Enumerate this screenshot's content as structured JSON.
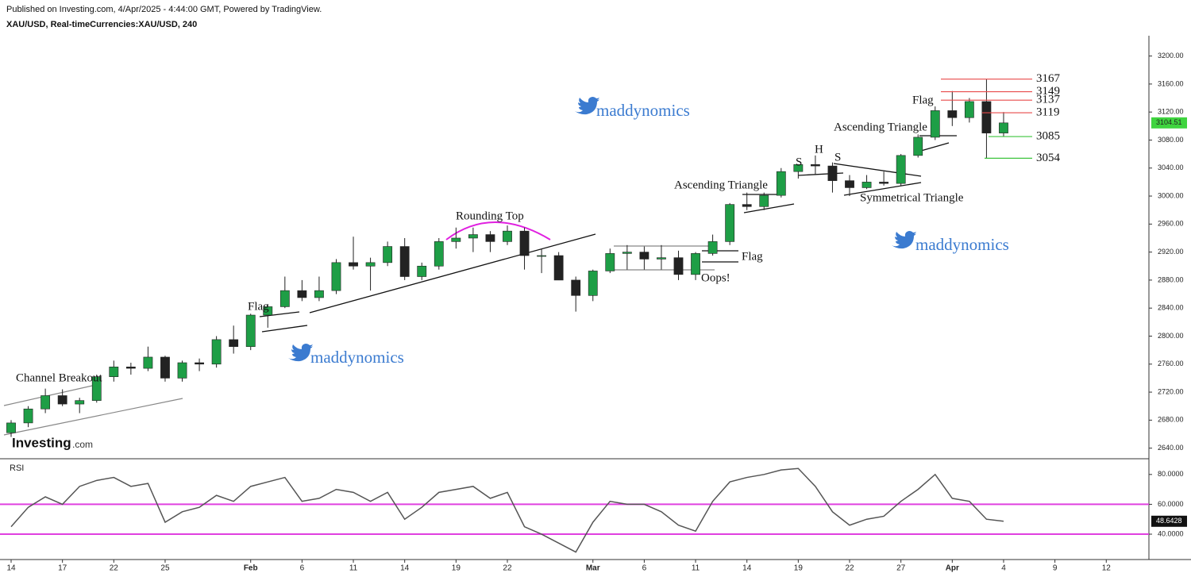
{
  "header": {
    "published": "Published on Investing.com, 4/Apr/2025 - 4:44:00 GMT, Powered by TradingView.",
    "symbol": "XAU/USD, Real-timeCurrencies:XAU/USD, 240",
    "watermark": "maddynomics",
    "logo": [
      "Investing",
      ".com"
    ]
  },
  "chart_data": [
    {
      "type": "candlestick",
      "open": [
        2662,
        2676,
        2696,
        2715,
        2703,
        2708,
        2742,
        2756,
        2754,
        2770,
        2740,
        2762,
        2760,
        2795,
        2785,
        2830,
        2842,
        2865,
        2855,
        2865,
        2905,
        2900,
        2905,
        2928,
        2885,
        2900,
        2935,
        2940,
        2945,
        2935,
        2950,
        2915,
        2915,
        2880,
        2858,
        2893,
        2918,
        2920,
        2910,
        2912,
        2888,
        2918,
        2935,
        2988,
        2985,
        3001,
        3035,
        3045,
        3043,
        3022,
        3012,
        3020,
        3018,
        3058,
        3084,
        3122,
        3112,
        3135,
        3090
      ],
      "high": [
        2680,
        2700,
        2725,
        2724,
        2712,
        2745,
        2765,
        2762,
        2785,
        2772,
        2765,
        2768,
        2800,
        2815,
        2832,
        2845,
        2885,
        2880,
        2885,
        2910,
        2942,
        2912,
        2935,
        2940,
        2905,
        2940,
        2955,
        2955,
        2950,
        2958,
        2955,
        2925,
        2920,
        2885,
        2895,
        2925,
        2930,
        2928,
        2930,
        2922,
        2920,
        2945,
        2990,
        3005,
        3005,
        3040,
        3045,
        3058,
        3048,
        3030,
        3030,
        3035,
        3060,
        3088,
        3128,
        3150,
        3140,
        3167,
        3120
      ],
      "low": [
        2656,
        2670,
        2690,
        2700,
        2690,
        2705,
        2735,
        2745,
        2750,
        2735,
        2735,
        2750,
        2755,
        2775,
        2780,
        2812,
        2840,
        2850,
        2850,
        2860,
        2895,
        2865,
        2900,
        2880,
        2880,
        2895,
        2925,
        2920,
        2920,
        2930,
        2895,
        2890,
        2880,
        2835,
        2850,
        2890,
        2895,
        2895,
        2895,
        2880,
        2880,
        2915,
        2930,
        2980,
        2980,
        2998,
        3025,
        3030,
        3005,
        3000,
        3010,
        3015,
        3015,
        3055,
        3080,
        3100,
        3105,
        3054,
        3085
      ],
      "close": [
        2676,
        2696,
        2715,
        2703,
        2708,
        2742,
        2756,
        2754,
        2770,
        2740,
        2762,
        2760,
        2795,
        2785,
        2830,
        2842,
        2865,
        2855,
        2865,
        2905,
        2900,
        2905,
        2928,
        2885,
        2900,
        2935,
        2940,
        2945,
        2935,
        2950,
        2915,
        2915,
        2880,
        2858,
        2893,
        2918,
        2920,
        2910,
        2912,
        2888,
        2918,
        2935,
        2988,
        2985,
        3001,
        3035,
        3045,
        3043,
        3022,
        3012,
        3020,
        3018,
        3058,
        3084,
        3122,
        3112,
        3135,
        3090,
        3104.51
      ],
      "up_color": "#1e9e46",
      "down_color": "#222222",
      "xlim": [
        -0.65,
        66.4
      ],
      "xticks": [
        {
          "value": 0,
          "label": "14"
        },
        {
          "value": 3,
          "label": "17"
        },
        {
          "value": 6,
          "label": "22"
        },
        {
          "value": 9,
          "label": "25"
        },
        {
          "value": 14,
          "label": "Feb"
        },
        {
          "value": 17,
          "label": "6"
        },
        {
          "value": 20,
          "label": "11"
        },
        {
          "value": 23,
          "label": "14"
        },
        {
          "value": 26,
          "label": "19"
        },
        {
          "value": 29,
          "label": "22"
        },
        {
          "value": 34,
          "label": "Mar"
        },
        {
          "value": 37,
          "label": "6"
        },
        {
          "value": 40,
          "label": "11"
        },
        {
          "value": 43,
          "label": "14"
        },
        {
          "value": 46,
          "label": "19"
        },
        {
          "value": 49,
          "label": "22"
        },
        {
          "value": 52,
          "label": "27"
        },
        {
          "value": 55,
          "label": "Apr"
        },
        {
          "value": 58,
          "label": "4"
        },
        {
          "value": 61,
          "label": "9"
        },
        {
          "value": 64,
          "label": "12"
        }
      ],
      "ylim": [
        2626,
        3229
      ],
      "yticks": [
        {
          "value": 2640,
          "label": "2640.00"
        },
        {
          "value": 2680,
          "label": "2680.00"
        },
        {
          "value": 2720,
          "label": "2720.00"
        },
        {
          "value": 2760,
          "label": "2760.00"
        },
        {
          "value": 2800,
          "label": "2800.00"
        },
        {
          "value": 2840,
          "label": "2840.00"
        },
        {
          "value": 2880,
          "label": "2880.00"
        },
        {
          "value": 2920,
          "label": "2920.00"
        },
        {
          "value": 2960,
          "label": "2960.00"
        },
        {
          "value": 3000,
          "label": "3000.00"
        },
        {
          "value": 3040,
          "label": "3040.00"
        },
        {
          "value": 3080,
          "label": "3080.00"
        },
        {
          "value": 3120,
          "label": "3120.00"
        },
        {
          "value": 3160,
          "label": "3160.00"
        },
        {
          "value": 3200,
          "label": "3200.00"
        }
      ],
      "levels": [
        {
          "value": 3167,
          "color": "#e84a4a"
        },
        {
          "value": 3149,
          "color": "#e84a4a"
        },
        {
          "value": 3137,
          "color": "#e84a4a"
        },
        {
          "value": 3119,
          "color": "#e84a4a"
        },
        {
          "value": 3085,
          "color": "#3cc43c"
        },
        {
          "value": 3054,
          "color": "#3cc43c"
        }
      ],
      "last_color": "#3fd43f",
      "annotations": [
        "Channel Breakout",
        "Flag",
        "Rounding Top",
        "Ascending Triangle",
        "Flag",
        "Oops!",
        "S",
        "H",
        "S",
        "Symmetrical Triangle",
        "Ascending Triangle",
        "Flag"
      ]
    },
    {
      "type": "line",
      "title": "RSI",
      "color": "#555555",
      "values": [
        45,
        58,
        65,
        60,
        72,
        76,
        78,
        72,
        74,
        48,
        55,
        58,
        66,
        62,
        72,
        75,
        78,
        62,
        64,
        70,
        68,
        62,
        68,
        50,
        58,
        68,
        70,
        72,
        64,
        68,
        45,
        40,
        34,
        28,
        48,
        62,
        60,
        60,
        55,
        46,
        42,
        62,
        75,
        78,
        80,
        83,
        84,
        72,
        55,
        46,
        50,
        52,
        62,
        70,
        80,
        64,
        62,
        50,
        48.6428
      ],
      "ylim": [
        23,
        90
      ],
      "yticks": [
        {
          "value": 40,
          "label": "40.0000"
        },
        {
          "value": 60,
          "label": "60.0000"
        },
        {
          "value": 80,
          "label": "80.0000"
        }
      ],
      "levels": [
        {
          "value": 60,
          "color": "#e040e0"
        },
        {
          "value": 40,
          "color": "#e040e0"
        }
      ]
    }
  ]
}
